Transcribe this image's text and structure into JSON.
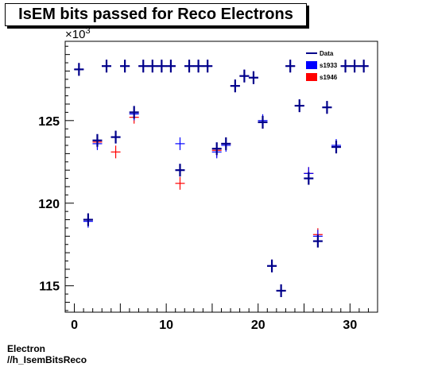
{
  "title": "IsEM bits passed for Reco Electrons",
  "footer": {
    "line1": "Electron",
    "line2": "//h_IsemBitsReco"
  },
  "chart_data": {
    "type": "scatter",
    "y_multiplier_label": "×10",
    "y_multiplier_exp": "3",
    "xlim": [
      -1,
      33
    ],
    "ylim": [
      113.4,
      129.8
    ],
    "x_ticks": [
      0,
      10,
      20,
      30
    ],
    "y_ticks": [
      115,
      120,
      125
    ],
    "legend_placement": "top-right",
    "x": [
      0.5,
      1.5,
      2.5,
      3.5,
      4.5,
      5.5,
      6.5,
      7.5,
      8.5,
      9.5,
      10.5,
      11.5,
      12.5,
      13.5,
      14.5,
      15.5,
      16.5,
      17.5,
      18.5,
      19.5,
      20.5,
      21.5,
      22.5,
      23.5,
      24.5,
      25.5,
      26.5,
      27.5,
      28.5,
      29.5,
      30.5,
      31.5
    ],
    "series": [
      {
        "name": "Data",
        "color": "#00008b",
        "values": [
          128.1,
          119.0,
          123.8,
          128.3,
          124.0,
          128.3,
          125.5,
          128.3,
          128.3,
          128.3,
          128.3,
          122.0,
          128.3,
          128.3,
          128.3,
          123.3,
          123.6,
          127.1,
          127.7,
          127.6,
          124.9,
          116.2,
          114.7,
          128.3,
          125.9,
          121.5,
          117.7,
          125.8,
          123.4,
          128.3,
          128.3,
          128.3
        ]
      },
      {
        "name": "s1933",
        "color": "#0000ff",
        "values": [
          128.1,
          118.9,
          123.6,
          128.3,
          124.0,
          128.3,
          125.4,
          128.3,
          128.3,
          128.3,
          128.3,
          123.6,
          128.3,
          128.3,
          128.3,
          123.1,
          123.5,
          127.1,
          127.7,
          127.6,
          125.0,
          116.2,
          114.7,
          128.3,
          125.9,
          121.8,
          118.0,
          125.8,
          123.5,
          128.3,
          128.3,
          128.3
        ]
      },
      {
        "name": "s1946",
        "color": "#ff0000",
        "values": [
          128.1,
          119.0,
          123.7,
          128.3,
          123.1,
          128.3,
          125.2,
          128.3,
          128.3,
          128.3,
          128.3,
          121.2,
          128.3,
          128.3,
          128.3,
          123.2,
          123.6,
          127.1,
          127.7,
          127.6,
          124.9,
          116.2,
          114.7,
          128.3,
          125.9,
          121.8,
          118.1,
          125.8,
          123.4,
          128.3,
          128.3,
          128.3
        ]
      }
    ]
  }
}
